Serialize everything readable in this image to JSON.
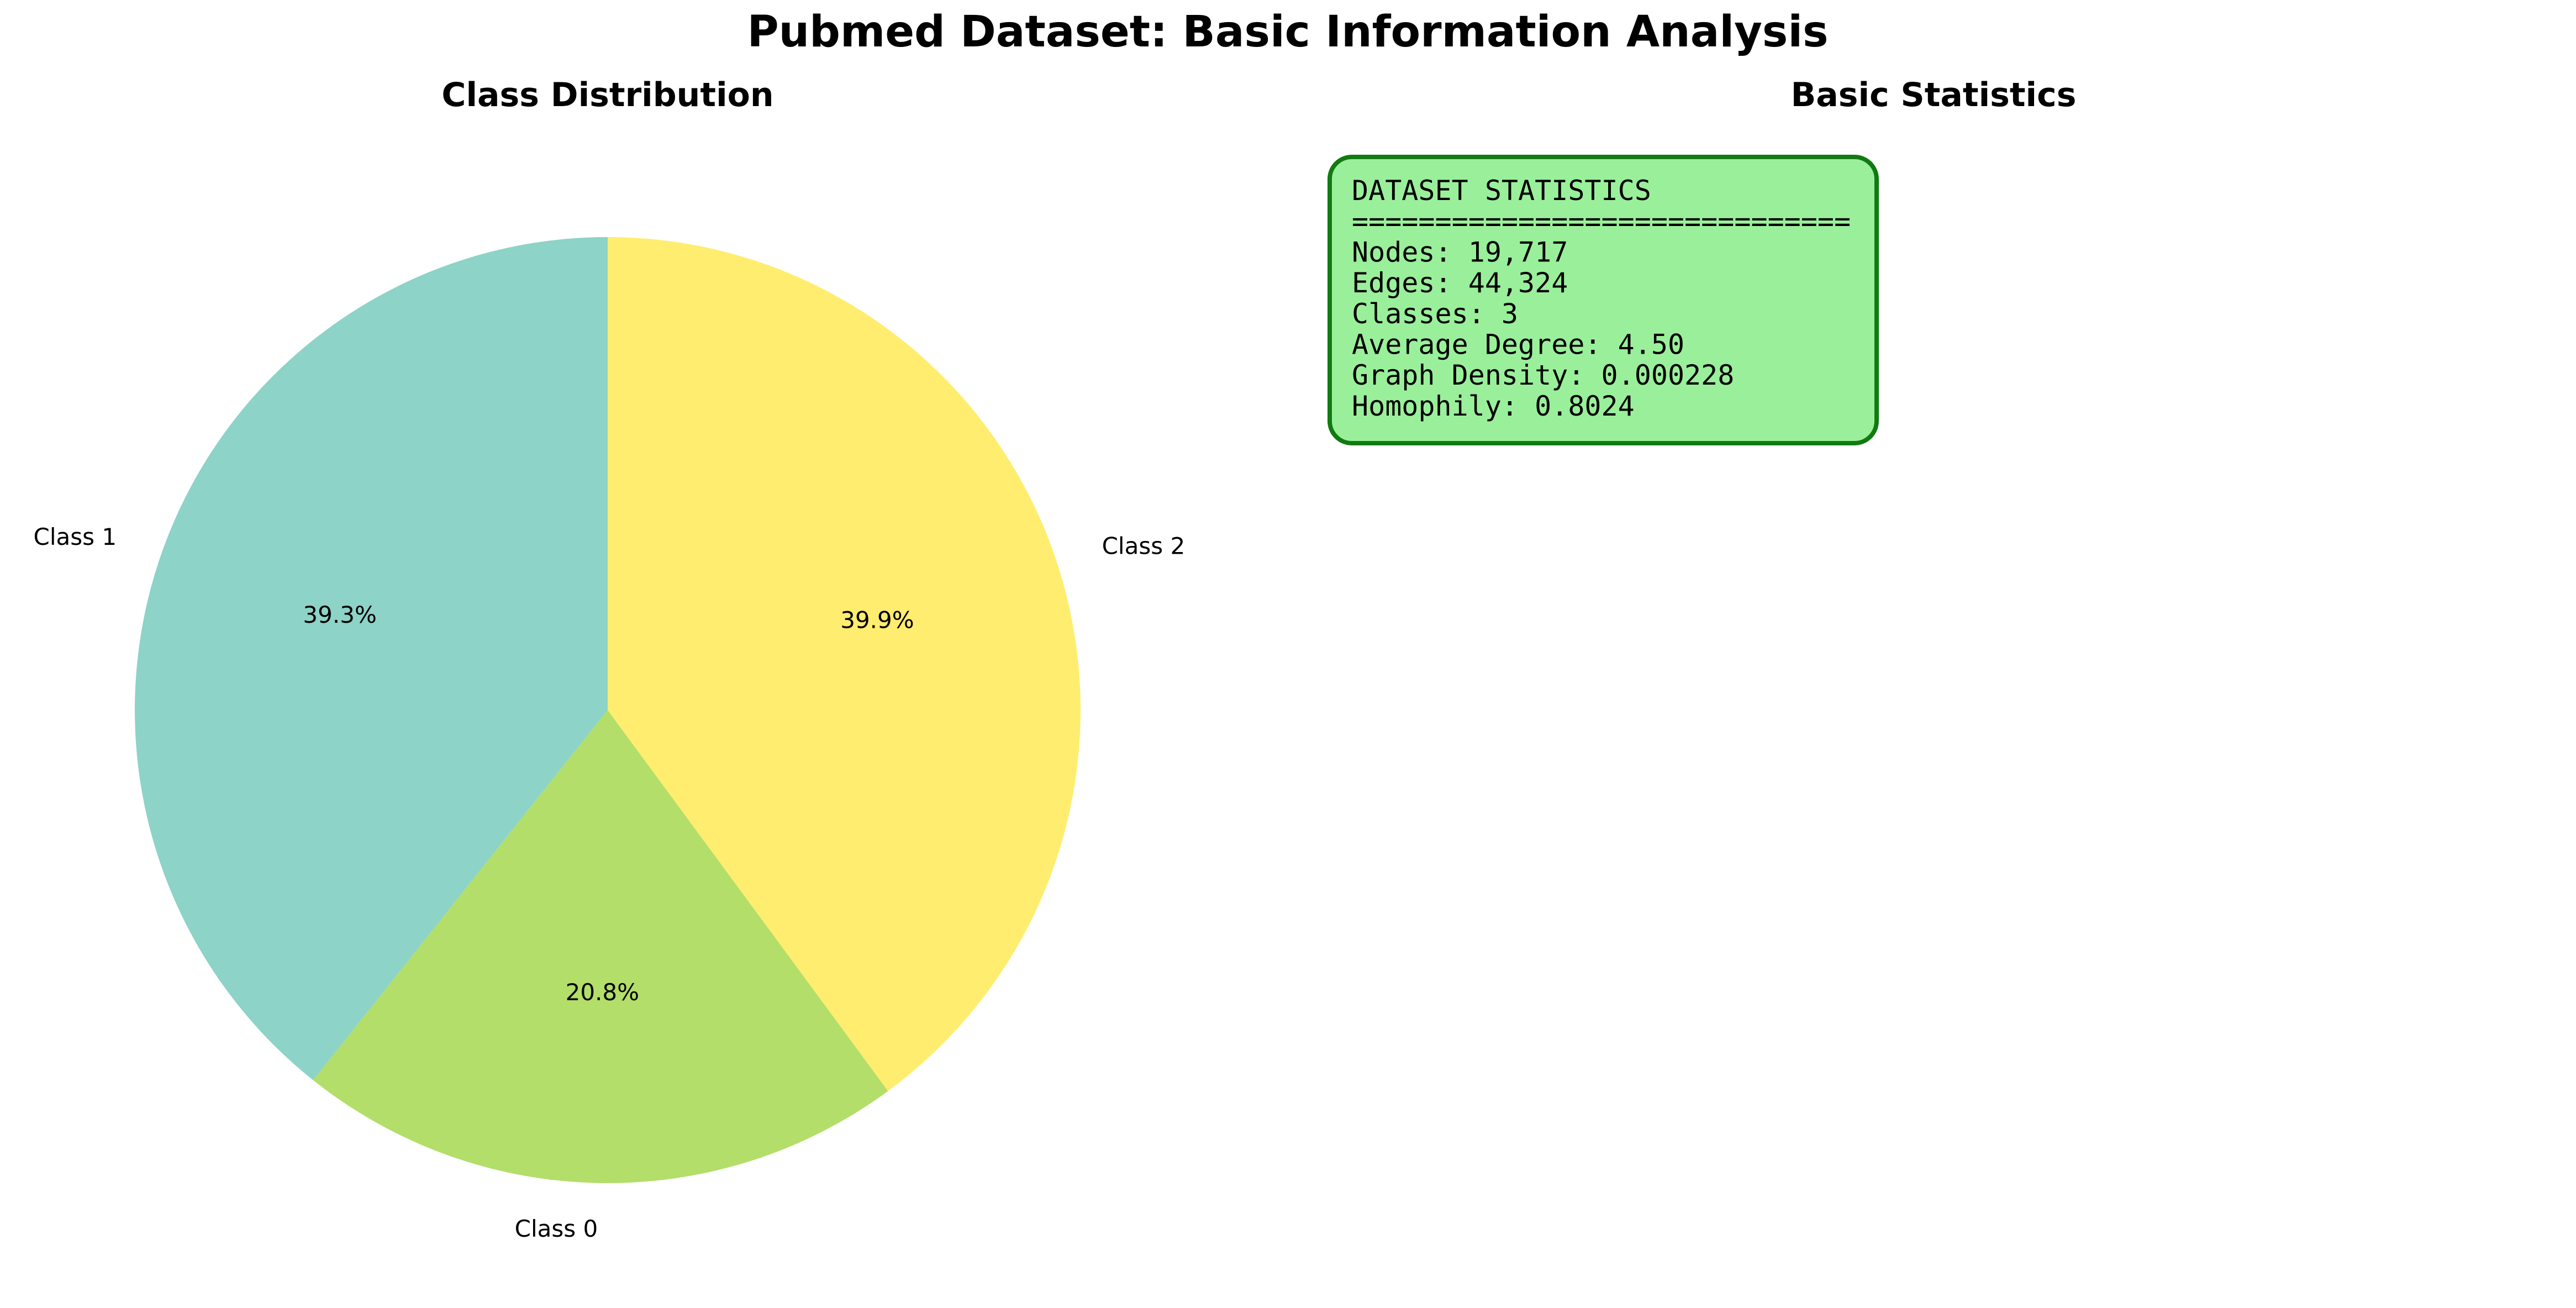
{
  "figure": {
    "title": "Pubmed Dataset: Basic Information Analysis"
  },
  "chart_data": [
    {
      "type": "pie",
      "title": "Class Distribution",
      "start_angle_deg": 90,
      "direction": "counterclockwise",
      "slices": [
        {
          "label": "Class 1",
          "value": 39.3,
          "pct_label": "39.3%",
          "color": "#8dd3c7"
        },
        {
          "label": "Class 0",
          "value": 20.8,
          "pct_label": "20.8%",
          "color": "#b3de69"
        },
        {
          "label": "Class 2",
          "value": 39.9,
          "pct_label": "39.9%",
          "color": "#ffed6f"
        }
      ]
    },
    {
      "type": "table",
      "title": "Basic Statistics",
      "box_fill": "#9af09a",
      "box_edge": "#117a11",
      "lines": [
        "DATASET STATISTICS",
        "==============================",
        "Nodes: 19,717",
        "Edges: 44,324",
        "Classes: 3",
        "Average Degree: 4.50",
        "Graph Density: 0.000228",
        "Homophily: 0.8024"
      ]
    }
  ]
}
